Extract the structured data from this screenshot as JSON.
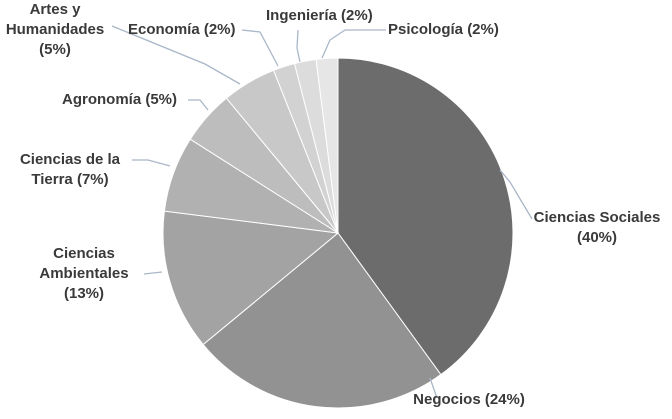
{
  "chart_data": {
    "type": "pie",
    "slices": [
      {
        "label_lines": [
          "Ciencias Sociales",
          "(40%)"
        ],
        "value": 40,
        "color": "#6c6c6c"
      },
      {
        "label_lines": [
          "Negocios (24%)"
        ],
        "value": 24,
        "color": "#929292"
      },
      {
        "label_lines": [
          "Ciencias",
          "Ambientales",
          "(13%)"
        ],
        "value": 13,
        "color": "#a3a3a3"
      },
      {
        "label_lines": [
          "Ciencias de la",
          "Tierra (7%)"
        ],
        "value": 7,
        "color": "#b1b1b1"
      },
      {
        "label_lines": [
          "Agronomía (5%)"
        ],
        "value": 5,
        "color": "#bdbdbd"
      },
      {
        "label_lines": [
          "Artes y",
          "Humanidades",
          "(5%)"
        ],
        "value": 5,
        "color": "#c8c8c8"
      },
      {
        "label_lines": [
          "Economía (2%)"
        ],
        "value": 2,
        "color": "#d2d2d2"
      },
      {
        "label_lines": [
          "Ingeniería (2%)"
        ],
        "value": 2,
        "color": "#dcdcdc"
      },
      {
        "label_lines": [
          "Psicología (2%)"
        ],
        "value": 2,
        "color": "#e6e6e6"
      }
    ]
  }
}
